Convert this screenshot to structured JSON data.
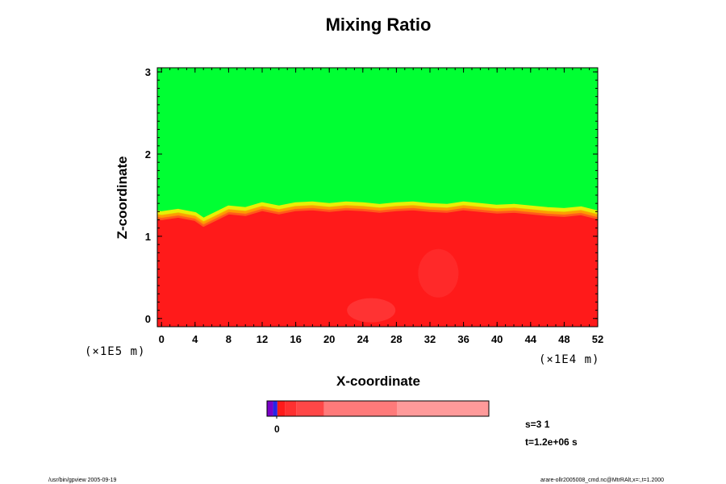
{
  "chart_data": {
    "type": "heatmap",
    "title": "Mixing Ratio",
    "xlabel": "X-coordinate",
    "ylabel": "Z-coordinate",
    "x_scale_label": "(×1E4 m)",
    "y_scale_label": "(×1E5 m)",
    "xlim": [
      -0.5,
      52
    ],
    "ylim": [
      -0.1,
      3.05
    ],
    "x_ticks": [
      "0",
      "4",
      "8",
      "12",
      "16",
      "20",
      "24",
      "28",
      "32",
      "36",
      "40",
      "44",
      "48",
      "52"
    ],
    "y_ticks": [
      "0",
      "1",
      "2",
      "3"
    ],
    "grid": false,
    "interface": {
      "x": [
        -0.5,
        0,
        2,
        4,
        5,
        6,
        8,
        10,
        12,
        14,
        16,
        18,
        20,
        22,
        24,
        26,
        28,
        30,
        32,
        34,
        36,
        38,
        40,
        42,
        44,
        46,
        48,
        50,
        52
      ],
      "z": [
        1.26,
        1.25,
        1.28,
        1.24,
        1.17,
        1.22,
        1.32,
        1.3,
        1.36,
        1.32,
        1.36,
        1.37,
        1.35,
        1.37,
        1.36,
        1.34,
        1.36,
        1.37,
        1.35,
        1.34,
        1.37,
        1.35,
        1.33,
        1.34,
        1.32,
        1.3,
        1.29,
        1.31,
        1.26
      ]
    },
    "regions": [
      {
        "name": "upper",
        "color": "#00ff33"
      },
      {
        "name": "lower",
        "color": "#ff1a1a"
      }
    ],
    "colorbar": {
      "tick_label": "0",
      "segments": [
        {
          "color": "#7a00c8",
          "weight": 1
        },
        {
          "color": "#2626e6",
          "weight": 0.7
        },
        {
          "color": "#ff1a1a",
          "weight": 1.3
        },
        {
          "color": "#ff3030",
          "weight": 1.8
        },
        {
          "color": "#ff4747",
          "weight": 4.5
        },
        {
          "color": "#ff7a7a",
          "weight": 12
        },
        {
          "color": "#ff9a9a",
          "weight": 15
        }
      ]
    },
    "info": {
      "s": "s=3 1",
      "t": "t=1.2e+06 s"
    }
  },
  "footer": {
    "left": "/usr/bin/gpview 2005-09-19",
    "right": "arare-ollr2005008_cmd.nc@MtrRAlt,x=:,t=1.2000"
  }
}
